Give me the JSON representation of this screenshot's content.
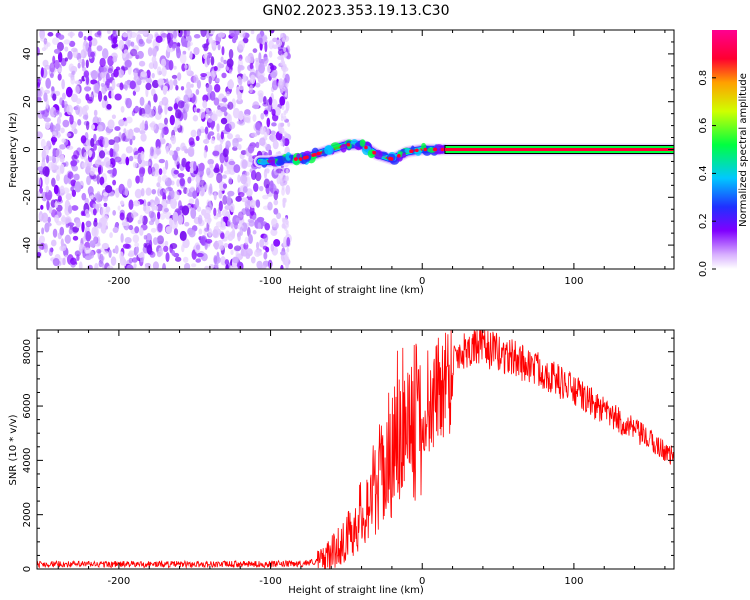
{
  "title": "GN02.2023.353.19.13.C30",
  "chart_data": [
    {
      "type": "heatmap",
      "xlabel": "Height of straight line (km)",
      "ylabel": "Frequency (Hz)",
      "xlim": [
        -254,
        166
      ],
      "ylim": [
        -50,
        50
      ],
      "x_ticks": [
        -200,
        -100,
        0,
        100
      ],
      "y_ticks": [
        -40,
        -20,
        0,
        20,
        40
      ],
      "colorbar": {
        "label": "Normalized spectral amplitude",
        "range": [
          0,
          1
        ],
        "ticks": [
          "0.0",
          "0.2",
          "0.4",
          "0.6",
          "0.8"
        ],
        "colors": [
          "#ffffff",
          "#d8b0ff",
          "#8000ff",
          "#2030ff",
          "#00c8ff",
          "#00ff40",
          "#d0ff00",
          "#ffa000",
          "#ff0030",
          "#ff0090"
        ]
      },
      "noise_region_x": [
        -254,
        -88
      ],
      "signal_track": {
        "x": [
          -107,
          -100,
          -90,
          -80,
          -70,
          -60,
          -50,
          -40,
          -30,
          -20,
          -10,
          0,
          20,
          60,
          100,
          166
        ],
        "y": [
          -5,
          -5,
          -4,
          -4,
          -2,
          0,
          2,
          2,
          -2,
          -4,
          -1,
          0,
          0,
          0,
          0,
          0
        ]
      },
      "grid": false
    },
    {
      "type": "line",
      "xlabel": "Height of straight line (km)",
      "ylabel": "SNR (10 * v/v)",
      "xlim": [
        -254,
        166
      ],
      "ylim": [
        0,
        8800
      ],
      "x_ticks": [
        -200,
        -100,
        0,
        100
      ],
      "y_ticks": [
        0,
        2000,
        4000,
        6000,
        8000
      ],
      "line_color": "#ff0000",
      "series": [
        {
          "x": [
            -254,
            -200,
            -150,
            -100,
            -80,
            -70,
            -60,
            -50,
            -40,
            -30,
            -20,
            -10,
            0,
            10,
            20,
            30,
            40,
            50,
            60,
            80,
            100,
            120,
            140,
            166
          ],
          "values": [
            200,
            200,
            200,
            200,
            220,
            300,
            700,
            1300,
            2300,
            3500,
            4900,
            5900,
            5400,
            7000,
            7900,
            8300,
            8350,
            8100,
            7900,
            7400,
            6700,
            5900,
            5200,
            4200
          ]
        }
      ],
      "grid": false
    }
  ]
}
